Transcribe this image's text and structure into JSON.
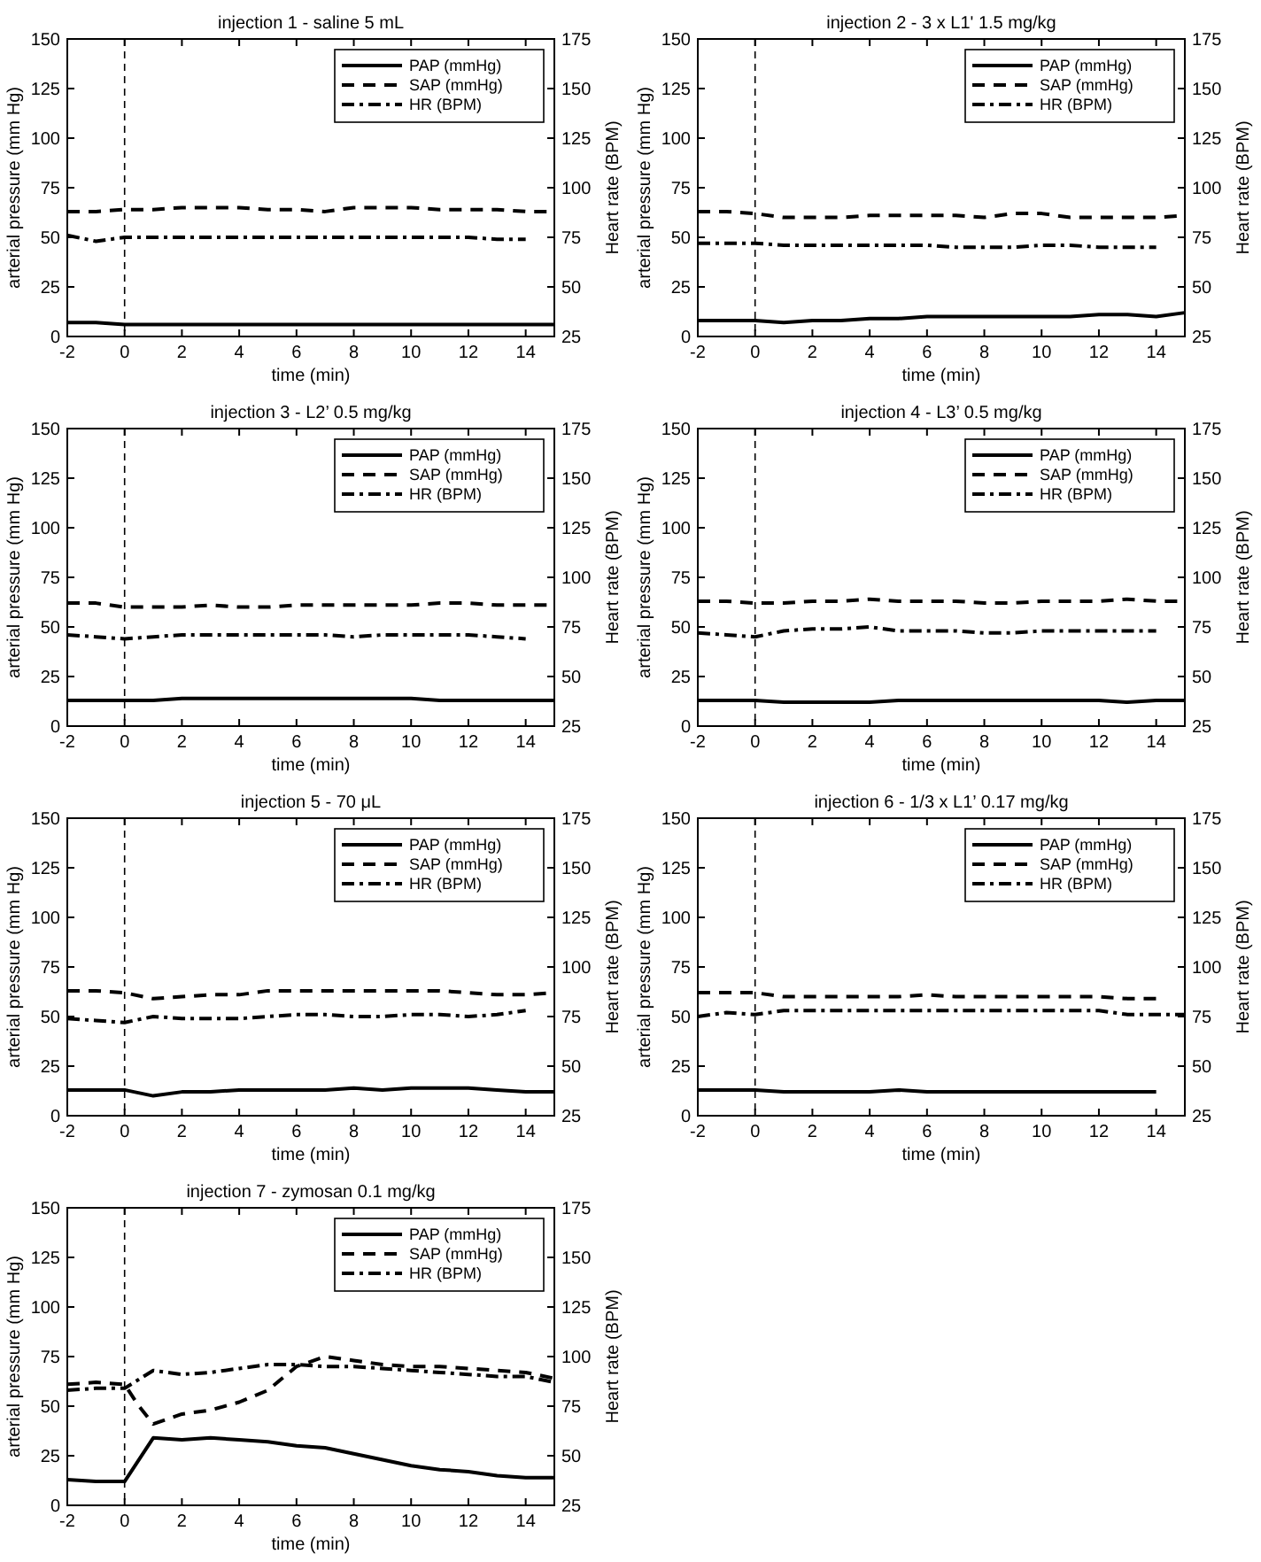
{
  "chart_data": [
    {
      "type": "line",
      "title": "injection 1 - saline 5 mL",
      "xlabel": "time (min)",
      "ylabel": "arterial pressure (mm Hg)",
      "y2label": "Heart rate (BPM)",
      "x": [
        -2,
        -1,
        0,
        1,
        2,
        3,
        4,
        5,
        6,
        7,
        8,
        9,
        10,
        11,
        12,
        13,
        14,
        15
      ],
      "xlim": [
        -2,
        15
      ],
      "xticks": [
        -2,
        0,
        2,
        4,
        6,
        8,
        10,
        12,
        14
      ],
      "ylim": [
        0,
        150
      ],
      "yticks": [
        0,
        25,
        50,
        75,
        100,
        125,
        150
      ],
      "y2lim": [
        25,
        175
      ],
      "y2ticks": [
        25,
        50,
        75,
        100,
        125,
        150,
        175
      ],
      "legend": "top right",
      "ref_lines": [
        {
          "axis": "x",
          "value": 0,
          "line_style": "dashed",
          "color": "#000000"
        }
      ],
      "series": [
        {
          "name": "PAP (mmHg)",
          "color": "#000000",
          "line_style": "solid",
          "values": [
            7,
            7,
            6,
            6,
            6,
            6,
            6,
            6,
            6,
            6,
            6,
            6,
            6,
            6,
            6,
            6,
            6,
            6
          ]
        },
        {
          "name": "SAP (mmHg)",
          "color": "#000000",
          "line_style": "dashed",
          "values": [
            63,
            63,
            64,
            64,
            65,
            65,
            65,
            64,
            64,
            63,
            65,
            65,
            65,
            64,
            64,
            64,
            63,
            63
          ]
        },
        {
          "name": "HR (BPM)",
          "color": "#000000",
          "line_style": "dashdot",
          "axis": "y2",
          "x": [
            -2,
            -1,
            0,
            1,
            2,
            3,
            4,
            5,
            6,
            7,
            8,
            9,
            10,
            11,
            12,
            13,
            14
          ],
          "values": [
            76,
            73,
            75,
            75,
            75,
            75,
            75,
            75,
            75,
            75,
            75,
            75,
            75,
            75,
            75,
            74,
            74
          ]
        }
      ]
    },
    {
      "type": "line",
      "title": "injection 2 - 3 x L1' 1.5 mg/kg",
      "xlabel": "time (min)",
      "ylabel": "arterial pressure (mm Hg)",
      "y2label": "Heart rate (BPM)",
      "x": [
        -2,
        -1,
        0,
        1,
        2,
        3,
        4,
        5,
        6,
        7,
        8,
        9,
        10,
        11,
        12,
        13,
        14,
        15
      ],
      "xlim": [
        -2,
        15
      ],
      "xticks": [
        -2,
        0,
        2,
        4,
        6,
        8,
        10,
        12,
        14
      ],
      "ylim": [
        0,
        150
      ],
      "yticks": [
        0,
        25,
        50,
        75,
        100,
        125,
        150
      ],
      "y2lim": [
        25,
        175
      ],
      "y2ticks": [
        25,
        50,
        75,
        100,
        125,
        150,
        175
      ],
      "legend": "top right",
      "ref_lines": [
        {
          "axis": "x",
          "value": 0,
          "line_style": "dashed",
          "color": "#000000"
        }
      ],
      "series": [
        {
          "name": "PAP (mmHg)",
          "color": "#000000",
          "line_style": "solid",
          "values": [
            8,
            8,
            8,
            7,
            8,
            8,
            9,
            9,
            10,
            10,
            10,
            10,
            10,
            10,
            11,
            11,
            10,
            12
          ]
        },
        {
          "name": "SAP (mmHg)",
          "color": "#000000",
          "line_style": "dashed",
          "values": [
            63,
            63,
            62,
            60,
            60,
            60,
            61,
            61,
            61,
            61,
            60,
            62,
            62,
            60,
            60,
            60,
            60,
            61
          ]
        },
        {
          "name": "HR (BPM)",
          "color": "#000000",
          "line_style": "dashdot",
          "axis": "y2",
          "x": [
            -2,
            -1,
            0,
            1,
            2,
            3,
            4,
            5,
            6,
            7,
            8,
            9,
            10,
            11,
            12,
            13,
            14
          ],
          "values": [
            72,
            72,
            72,
            71,
            71,
            71,
            71,
            71,
            71,
            70,
            70,
            70,
            71,
            71,
            70,
            70,
            70
          ]
        }
      ]
    },
    {
      "type": "line",
      "title": "injection 3 - L2’ 0.5 mg/kg",
      "xlabel": "time (min)",
      "ylabel": "arterial pressure (mm Hg)",
      "y2label": "Heart rate (BPM)",
      "x": [
        -2,
        -1,
        0,
        1,
        2,
        3,
        4,
        5,
        6,
        7,
        8,
        9,
        10,
        11,
        12,
        13,
        14,
        15
      ],
      "xlim": [
        -2,
        15
      ],
      "xticks": [
        -2,
        0,
        2,
        4,
        6,
        8,
        10,
        12,
        14
      ],
      "ylim": [
        0,
        150
      ],
      "yticks": [
        0,
        25,
        50,
        75,
        100,
        125,
        150
      ],
      "y2lim": [
        25,
        175
      ],
      "y2ticks": [
        25,
        50,
        75,
        100,
        125,
        150,
        175
      ],
      "legend": "top right",
      "ref_lines": [
        {
          "axis": "x",
          "value": 0,
          "line_style": "dashed",
          "color": "#000000"
        }
      ],
      "series": [
        {
          "name": "PAP (mmHg)",
          "color": "#000000",
          "line_style": "solid",
          "values": [
            13,
            13,
            13,
            13,
            14,
            14,
            14,
            14,
            14,
            14,
            14,
            14,
            14,
            13,
            13,
            13,
            13,
            13
          ]
        },
        {
          "name": "SAP (mmHg)",
          "color": "#000000",
          "line_style": "dashed",
          "values": [
            62,
            62,
            60,
            60,
            60,
            61,
            60,
            60,
            61,
            61,
            61,
            61,
            61,
            62,
            62,
            61,
            61,
            61
          ]
        },
        {
          "name": "HR (BPM)",
          "color": "#000000",
          "line_style": "dashdot",
          "axis": "y2",
          "x": [
            -2,
            -1,
            0,
            1,
            2,
            3,
            4,
            5,
            6,
            7,
            8,
            9,
            10,
            11,
            12,
            13,
            14
          ],
          "values": [
            71,
            70,
            69,
            70,
            71,
            71,
            71,
            71,
            71,
            71,
            70,
            71,
            71,
            71,
            71,
            70,
            69
          ]
        }
      ]
    },
    {
      "type": "line",
      "title": "injection 4 - L3’ 0.5 mg/kg",
      "xlabel": "time (min)",
      "ylabel": "arterial pressure (mm Hg)",
      "y2label": "Heart rate (BPM)",
      "x": [
        -2,
        -1,
        0,
        1,
        2,
        3,
        4,
        5,
        6,
        7,
        8,
        9,
        10,
        11,
        12,
        13,
        14,
        15
      ],
      "xlim": [
        -2,
        15
      ],
      "xticks": [
        -2,
        0,
        2,
        4,
        6,
        8,
        10,
        12,
        14
      ],
      "ylim": [
        0,
        150
      ],
      "yticks": [
        0,
        25,
        50,
        75,
        100,
        125,
        150
      ],
      "y2lim": [
        25,
        175
      ],
      "y2ticks": [
        25,
        50,
        75,
        100,
        125,
        150,
        175
      ],
      "legend": "top right",
      "ref_lines": [
        {
          "axis": "x",
          "value": 0,
          "line_style": "dashed",
          "color": "#000000"
        }
      ],
      "series": [
        {
          "name": "PAP (mmHg)",
          "color": "#000000",
          "line_style": "solid",
          "values": [
            13,
            13,
            13,
            12,
            12,
            12,
            12,
            13,
            13,
            13,
            13,
            13,
            13,
            13,
            13,
            12,
            13,
            13
          ]
        },
        {
          "name": "SAP (mmHg)",
          "color": "#000000",
          "line_style": "dashed",
          "values": [
            63,
            63,
            62,
            62,
            63,
            63,
            64,
            63,
            63,
            63,
            62,
            62,
            63,
            63,
            63,
            64,
            63,
            63
          ]
        },
        {
          "name": "HR (BPM)",
          "color": "#000000",
          "line_style": "dashdot",
          "axis": "y2",
          "x": [
            -2,
            -1,
            0,
            1,
            2,
            3,
            4,
            5,
            6,
            7,
            8,
            9,
            10,
            11,
            12,
            13,
            14
          ],
          "values": [
            72,
            71,
            70,
            73,
            74,
            74,
            75,
            73,
            73,
            73,
            72,
            72,
            73,
            73,
            73,
            73,
            73
          ]
        }
      ]
    },
    {
      "type": "line",
      "title": "injection 5 - 70 μL",
      "xlabel": "time (min)",
      "ylabel": "arterial pressure (mm Hg)",
      "y2label": "Heart rate (BPM)",
      "x": [
        -2,
        -1,
        0,
        1,
        2,
        3,
        4,
        5,
        6,
        7,
        8,
        9,
        10,
        11,
        12,
        13,
        14,
        15
      ],
      "xlim": [
        -2,
        15
      ],
      "xticks": [
        -2,
        0,
        2,
        4,
        6,
        8,
        10,
        12,
        14
      ],
      "ylim": [
        0,
        150
      ],
      "yticks": [
        0,
        25,
        50,
        75,
        100,
        125,
        150
      ],
      "y2lim": [
        25,
        175
      ],
      "y2ticks": [
        25,
        50,
        75,
        100,
        125,
        150,
        175
      ],
      "legend": "top right",
      "ref_lines": [
        {
          "axis": "x",
          "value": 0,
          "line_style": "dashed",
          "color": "#000000"
        }
      ],
      "series": [
        {
          "name": "PAP (mmHg)",
          "color": "#000000",
          "line_style": "solid",
          "values": [
            13,
            13,
            13,
            10,
            12,
            12,
            13,
            13,
            13,
            13,
            14,
            13,
            14,
            14,
            14,
            13,
            12,
            12
          ]
        },
        {
          "name": "SAP (mmHg)",
          "color": "#000000",
          "line_style": "dashed",
          "values": [
            63,
            63,
            62,
            59,
            60,
            61,
            61,
            63,
            63,
            63,
            63,
            63,
            63,
            63,
            62,
            61,
            61,
            62
          ]
        },
        {
          "name": "HR (BPM)",
          "color": "#000000",
          "line_style": "dashdot",
          "axis": "y2",
          "x": [
            -2,
            -1,
            0,
            1,
            2,
            3,
            4,
            5,
            6,
            7,
            8,
            9,
            10,
            11,
            12,
            13,
            14
          ],
          "values": [
            74,
            73,
            72,
            75,
            74,
            74,
            74,
            75,
            76,
            76,
            75,
            75,
            76,
            76,
            75,
            76,
            78
          ]
        }
      ]
    },
    {
      "type": "line",
      "title": "injection 6 - 1/3 x L1’ 0.17 mg/kg",
      "xlabel": "time (min)",
      "ylabel": "arterial pressure (mm Hg)",
      "y2label": "Heart rate (BPM)",
      "x": [
        -2,
        -1,
        0,
        1,
        2,
        3,
        4,
        5,
        6,
        7,
        8,
        9,
        10,
        11,
        12,
        13,
        14
      ],
      "xlim": [
        -2,
        15
      ],
      "xticks": [
        -2,
        0,
        2,
        4,
        6,
        8,
        10,
        12,
        14
      ],
      "ylim": [
        0,
        150
      ],
      "yticks": [
        0,
        25,
        50,
        75,
        100,
        125,
        150
      ],
      "y2lim": [
        25,
        175
      ],
      "y2ticks": [
        25,
        50,
        75,
        100,
        125,
        150,
        175
      ],
      "legend": "top right",
      "ref_lines": [
        {
          "axis": "x",
          "value": 0,
          "line_style": "dashed",
          "color": "#000000"
        }
      ],
      "series": [
        {
          "name": "PAP (mmHg)",
          "color": "#000000",
          "line_style": "solid",
          "values": [
            13,
            13,
            13,
            12,
            12,
            12,
            12,
            13,
            12,
            12,
            12,
            12,
            12,
            12,
            12,
            12,
            12
          ]
        },
        {
          "name": "SAP (mmHg)",
          "color": "#000000",
          "line_style": "dashed",
          "values": [
            62,
            62,
            62,
            60,
            60,
            60,
            60,
            60,
            61,
            60,
            60,
            60,
            60,
            60,
            60,
            59,
            59
          ]
        },
        {
          "name": "HR (BPM)",
          "color": "#000000",
          "line_style": "dashdot",
          "axis": "y2",
          "x": [
            -2,
            -1,
            0,
            1,
            2,
            3,
            4,
            5,
            6,
            7,
            8,
            9,
            10,
            11,
            12,
            13,
            14,
            15
          ],
          "values": [
            75,
            77,
            76,
            78,
            78,
            78,
            78,
            78,
            78,
            78,
            78,
            78,
            78,
            78,
            78,
            76,
            76,
            76
          ]
        }
      ]
    },
    {
      "type": "line",
      "title": "injection 7 - zymosan 0.1 mg/kg",
      "xlabel": "time (min)",
      "ylabel": "arterial pressure (mm Hg)",
      "y2label": "Heart rate (BPM)",
      "x": [
        -2,
        -1,
        0,
        1,
        2,
        3,
        4,
        5,
        6,
        7,
        8,
        9,
        10,
        11,
        12,
        13,
        14,
        15
      ],
      "xlim": [
        -2,
        15
      ],
      "xticks": [
        -2,
        0,
        2,
        4,
        6,
        8,
        10,
        12,
        14
      ],
      "ylim": [
        0,
        150
      ],
      "yticks": [
        0,
        25,
        50,
        75,
        100,
        125,
        150
      ],
      "y2lim": [
        25,
        175
      ],
      "y2ticks": [
        25,
        50,
        75,
        100,
        125,
        150,
        175
      ],
      "legend": "top right",
      "ref_lines": [
        {
          "axis": "x",
          "value": 0,
          "line_style": "dashed",
          "color": "#000000"
        }
      ],
      "series": [
        {
          "name": "PAP (mmHg)",
          "color": "#000000",
          "line_style": "solid",
          "values": [
            13,
            12,
            12,
            34,
            33,
            34,
            33,
            32,
            30,
            29,
            26,
            23,
            20,
            18,
            17,
            15,
            14,
            14
          ]
        },
        {
          "name": "SAP (mmHg)",
          "color": "#000000",
          "line_style": "dashed",
          "x": [
            -2,
            -1,
            0,
            0.5,
            1,
            2,
            3,
            4,
            5,
            6,
            7,
            8,
            9,
            10,
            11,
            12,
            13,
            14,
            15
          ],
          "values": [
            61,
            62,
            61,
            50,
            41,
            46,
            48,
            52,
            58,
            70,
            75,
            73,
            71,
            70,
            70,
            69,
            68,
            67,
            64
          ]
        },
        {
          "name": "HR (BPM)",
          "color": "#000000",
          "line_style": "dashdot",
          "axis": "y2",
          "values": [
            83,
            84,
            84,
            93,
            91,
            92,
            94,
            96,
            96,
            95,
            95,
            94,
            93,
            92,
            91,
            90,
            90,
            87
          ]
        }
      ]
    }
  ]
}
